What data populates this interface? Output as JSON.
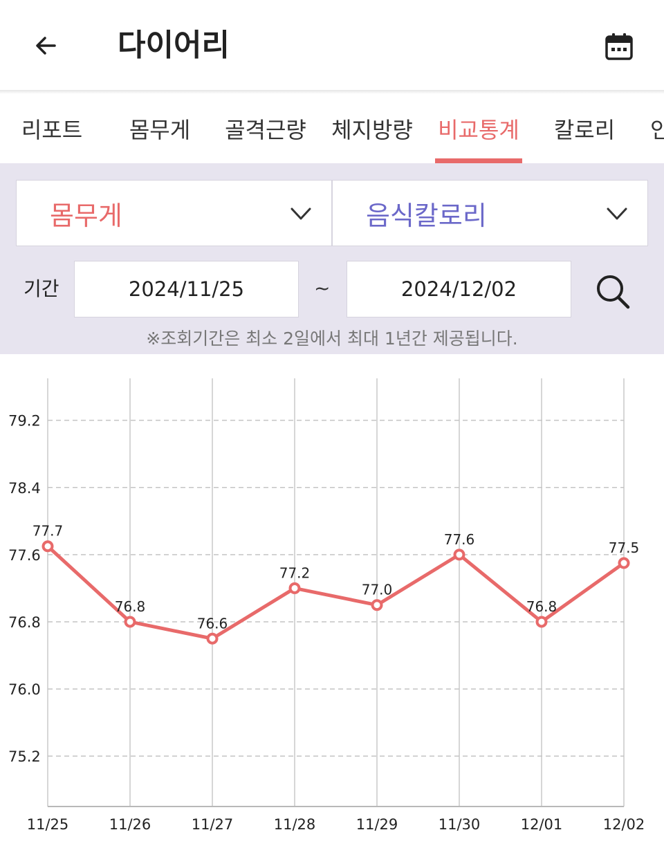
{
  "header": {
    "title": "다이어리",
    "back_icon": "arrow-left-icon",
    "calendar_icon": "calendar-icon"
  },
  "tabs": [
    {
      "label": "리포트"
    },
    {
      "label": "몸무게"
    },
    {
      "label": "골격근량"
    },
    {
      "label": "체지방량"
    },
    {
      "label": "비교통계"
    },
    {
      "label": "칼로리"
    },
    {
      "label": "인"
    }
  ],
  "active_tab_index": 4,
  "filter": {
    "left_select": "몸무게",
    "right_select": "음식칼로리",
    "period_label": "기간",
    "date_from": "2024/11/25",
    "date_separator": "~",
    "date_to": "2024/12/02",
    "notice": "※조회기간은 최소 2일에서 최대 1년간 제공됩니다."
  },
  "colors": {
    "accent": "#e86a6a",
    "secondary": "#6b68c9",
    "filter_bg": "#e7e4ef"
  },
  "chart_data": {
    "type": "line",
    "categories": [
      "11/25",
      "11/26",
      "11/27",
      "11/28",
      "11/29",
      "11/30",
      "12/01",
      "12/02"
    ],
    "series": [
      {
        "values": [
          77.7,
          76.8,
          76.6,
          77.2,
          77.0,
          77.6,
          76.8,
          77.5
        ],
        "color": "#e86a6a"
      }
    ],
    "value_labels": [
      "77.7",
      "76.8",
      "76.6",
      "77.2",
      "77.0",
      "77.6",
      "76.8",
      "77.5"
    ],
    "y_ticks": [
      "79.2",
      "78.4",
      "77.6",
      "76.8",
      "76.0",
      "75.2"
    ],
    "ylim": [
      74.6,
      79.7
    ],
    "grid": true
  }
}
